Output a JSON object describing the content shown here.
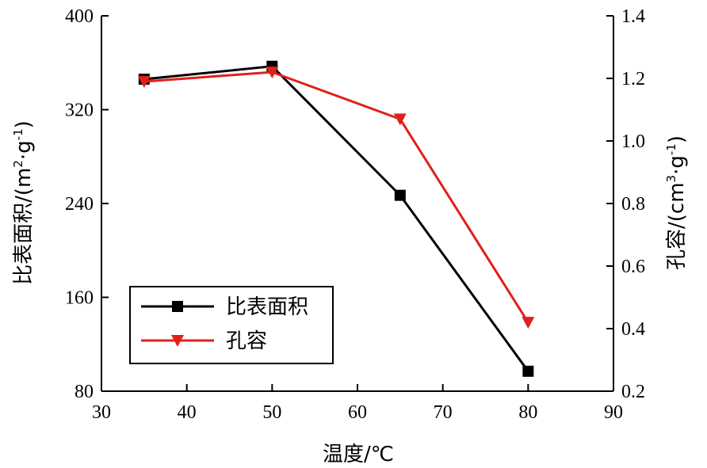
{
  "chart_data": {
    "type": "line",
    "x": [
      35,
      50,
      65,
      80
    ],
    "xlabel": "温度/℃",
    "xlim": [
      30,
      90
    ],
    "xticks": [
      "30",
      "40",
      "50",
      "60",
      "70",
      "80",
      "90"
    ],
    "ylabel_left_prefix": "比表面积/(m",
    "ylabel_left_sup1": "2",
    "ylabel_left_mid": "·g",
    "ylabel_left_sup2": "-1",
    "ylabel_left_suffix": ")",
    "ylim_left": [
      80,
      400
    ],
    "yticks_left": [
      "80",
      "160",
      "240",
      "320",
      "400"
    ],
    "ylabel_right_prefix": "孔容/(cm",
    "ylabel_right_sup1": "3",
    "ylabel_right_mid": "·g",
    "ylabel_right_sup2": "-1",
    "ylabel_right_suffix": ")",
    "ylim_right": [
      0.2,
      1.4
    ],
    "yticks_right": [
      "0.2",
      "0.4",
      "0.6",
      "0.8",
      "1.0",
      "1.2",
      "1.4"
    ],
    "series": [
      {
        "name": "比表面积",
        "axis": "left",
        "values": [
          346,
          357,
          247,
          97
        ],
        "color": "#000000",
        "marker": "square"
      },
      {
        "name": "孔容",
        "axis": "right",
        "values": [
          1.19,
          1.22,
          1.07,
          0.42
        ],
        "color": "#e0201b",
        "marker": "triangle-down"
      }
    ],
    "legend_position": "bottom-left",
    "grid": false
  }
}
